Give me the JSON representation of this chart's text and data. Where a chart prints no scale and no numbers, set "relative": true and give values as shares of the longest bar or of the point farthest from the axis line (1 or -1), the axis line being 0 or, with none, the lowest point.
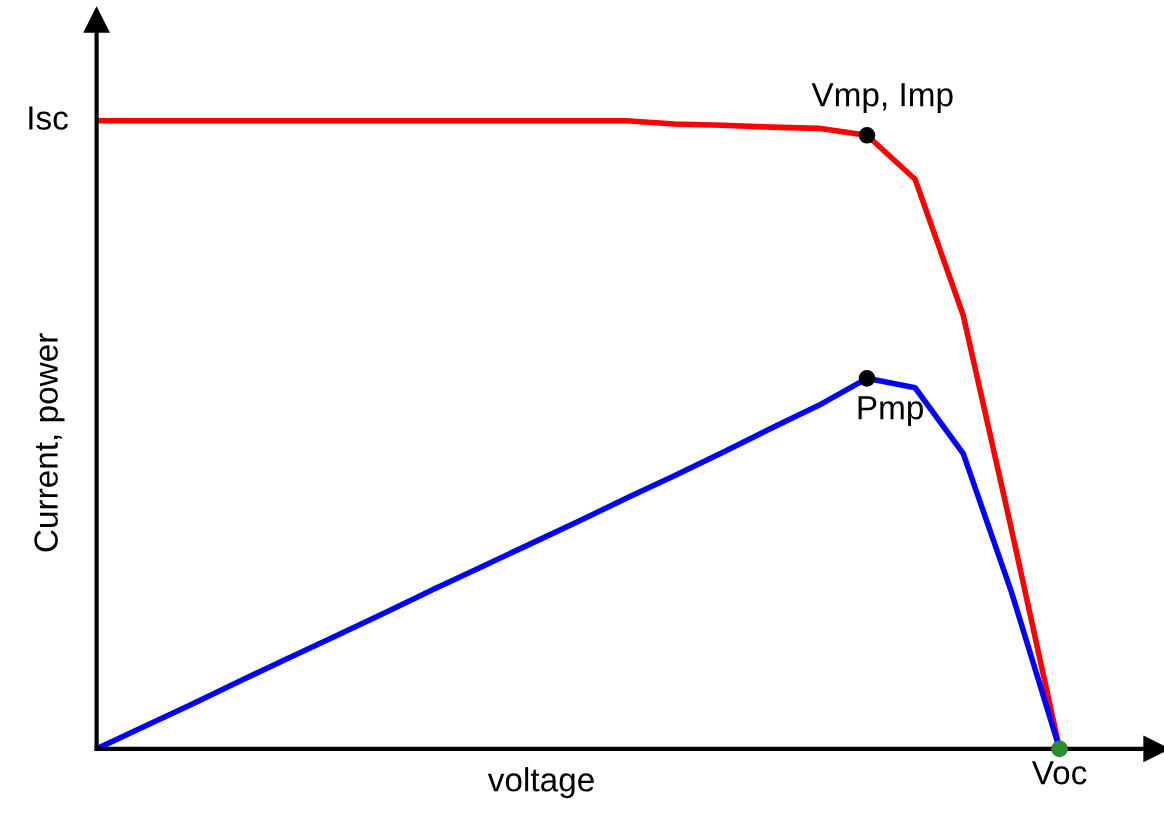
{
  "chart_data": {
    "type": "line",
    "relative": true,
    "xlabel": "voltage",
    "ylabel": "Current, power",
    "line_style": "solid",
    "categories": [
      null,
      null,
      null,
      null,
      null,
      null,
      null,
      null,
      null,
      null,
      null,
      null,
      null,
      null,
      null,
      null,
      null,
      null,
      null,
      null,
      null,
      null,
      null
    ],
    "series": [
      {
        "color": "#ff0000",
        "values": [
          1.0,
          1.0,
          1.0,
          1.0,
          1.0,
          1.0,
          1.0,
          1.0,
          1.0,
          1.0,
          1.0,
          1.0,
          0.995,
          0.993,
          0.99,
          0.988,
          0.977,
          0.907,
          0.69,
          0.35,
          0,
          null,
          null
        ]
      },
      {
        "color": "#0000ff",
        "values": [
          0,
          0.036,
          0.072,
          0.109,
          0.145,
          0.181,
          0.217,
          0.254,
          0.29,
          0.326,
          0.362,
          0.399,
          0.435,
          0.472,
          0.51,
          0.547,
          0.59,
          0.575,
          0.47,
          0.25,
          0,
          null,
          null
        ]
      }
    ],
    "annotations": [
      "Vmp, Imp",
      "Pmp",
      "Isc",
      "Voc"
    ]
  }
}
